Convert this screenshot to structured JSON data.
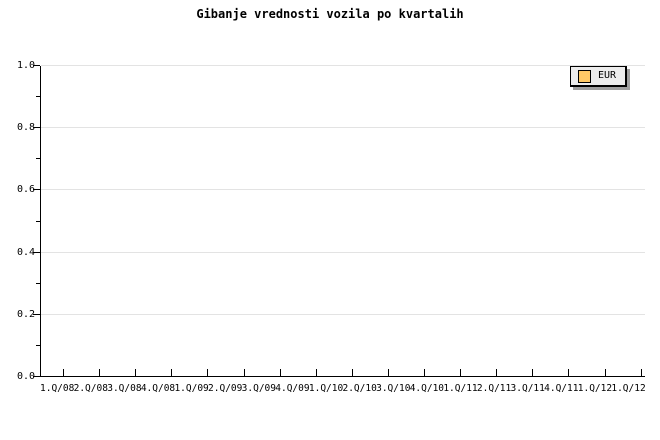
{
  "chart": {
    "title": "Gibanje vrednosti vozila po kvartalih"
  },
  "legend": {
    "items": [
      {
        "label": "EUR"
      }
    ]
  },
  "colors": {
    "background": "#ffffff",
    "text": "#000000",
    "axis": "#000000",
    "grid": "#e3e3e3",
    "legend_fill": "#ededed",
    "legend_shadow": "#a0a0a0",
    "swatch": "#ffc966"
  },
  "chart_data": {
    "type": "line",
    "title": "Gibanje vrednosti vozila po kvartalih",
    "categories": [
      "1.Q/08",
      "2.Q/08",
      "3.Q/08",
      "4.Q/08",
      "1.Q/09",
      "2.Q/09",
      "3.Q/09",
      "4.Q/09",
      "1.Q/10",
      "2.Q/10",
      "3.Q/10",
      "4.Q/10",
      "1.Q/11",
      "2.Q/11",
      "3.Q/11",
      "4.Q/11",
      "1.Q/12",
      "1.Q/12"
    ],
    "series": [
      {
        "name": "EUR",
        "color": "#ffc966",
        "values": []
      }
    ],
    "xlabel": "",
    "ylabel": "",
    "ylim": [
      0.0,
      1.0
    ],
    "y_ticks": [
      0.0,
      0.2,
      0.4,
      0.6,
      0.8,
      1.0
    ],
    "y_tick_labels": [
      "0.0",
      "0.2",
      "0.4",
      "0.6",
      "0.8",
      "1.0"
    ],
    "y_minor_step": 0.1,
    "grid": "horizontal-only",
    "legend_position": "top-right"
  }
}
